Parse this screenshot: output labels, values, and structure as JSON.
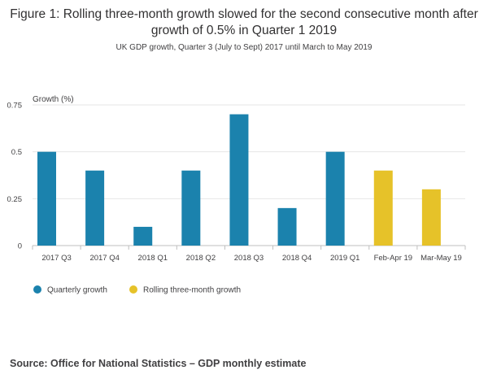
{
  "header": {
    "title": "Figure 1: Rolling three-month growth slowed for the second consecutive month after growth of 0.5% in Quarter 1 2019",
    "subtitle": "UK GDP growth, Quarter 3 (July to Sept) 2017 until March to May 2019"
  },
  "chart_data": {
    "type": "bar",
    "title": "Figure 1: Rolling three-month growth slowed for the second consecutive month after growth of 0.5% in Quarter 1 2019",
    "subtitle": "UK GDP growth, Quarter 3 (July to Sept) 2017 until March to May 2019",
    "ylabel": "Growth (%)",
    "xlabel": "",
    "ylim": [
      0,
      0.75
    ],
    "yticks": [
      0,
      0.25,
      0.5,
      0.75
    ],
    "ytick_labels": [
      "0",
      "0.25",
      "0.5",
      "0.75"
    ],
    "grid": true,
    "legend_position": "bottom-left",
    "categories": [
      "2017 Q3",
      "2017 Q4",
      "2018 Q1",
      "2018 Q2",
      "2018 Q3",
      "2018 Q4",
      "2019 Q1",
      "Feb-Apr 19",
      "Mar-May 19"
    ],
    "series": [
      {
        "name": "Quarterly growth",
        "color": "#1b82ad",
        "values": [
          0.5,
          0.4,
          0.1,
          0.4,
          0.7,
          0.2,
          0.5,
          null,
          null
        ]
      },
      {
        "name": "Rolling three-month growth",
        "color": "#e6c229",
        "values": [
          null,
          null,
          null,
          null,
          null,
          null,
          null,
          0.4,
          0.3
        ]
      }
    ]
  },
  "footer": {
    "source": "Source: Office for National Statistics – GDP monthly estimate"
  }
}
